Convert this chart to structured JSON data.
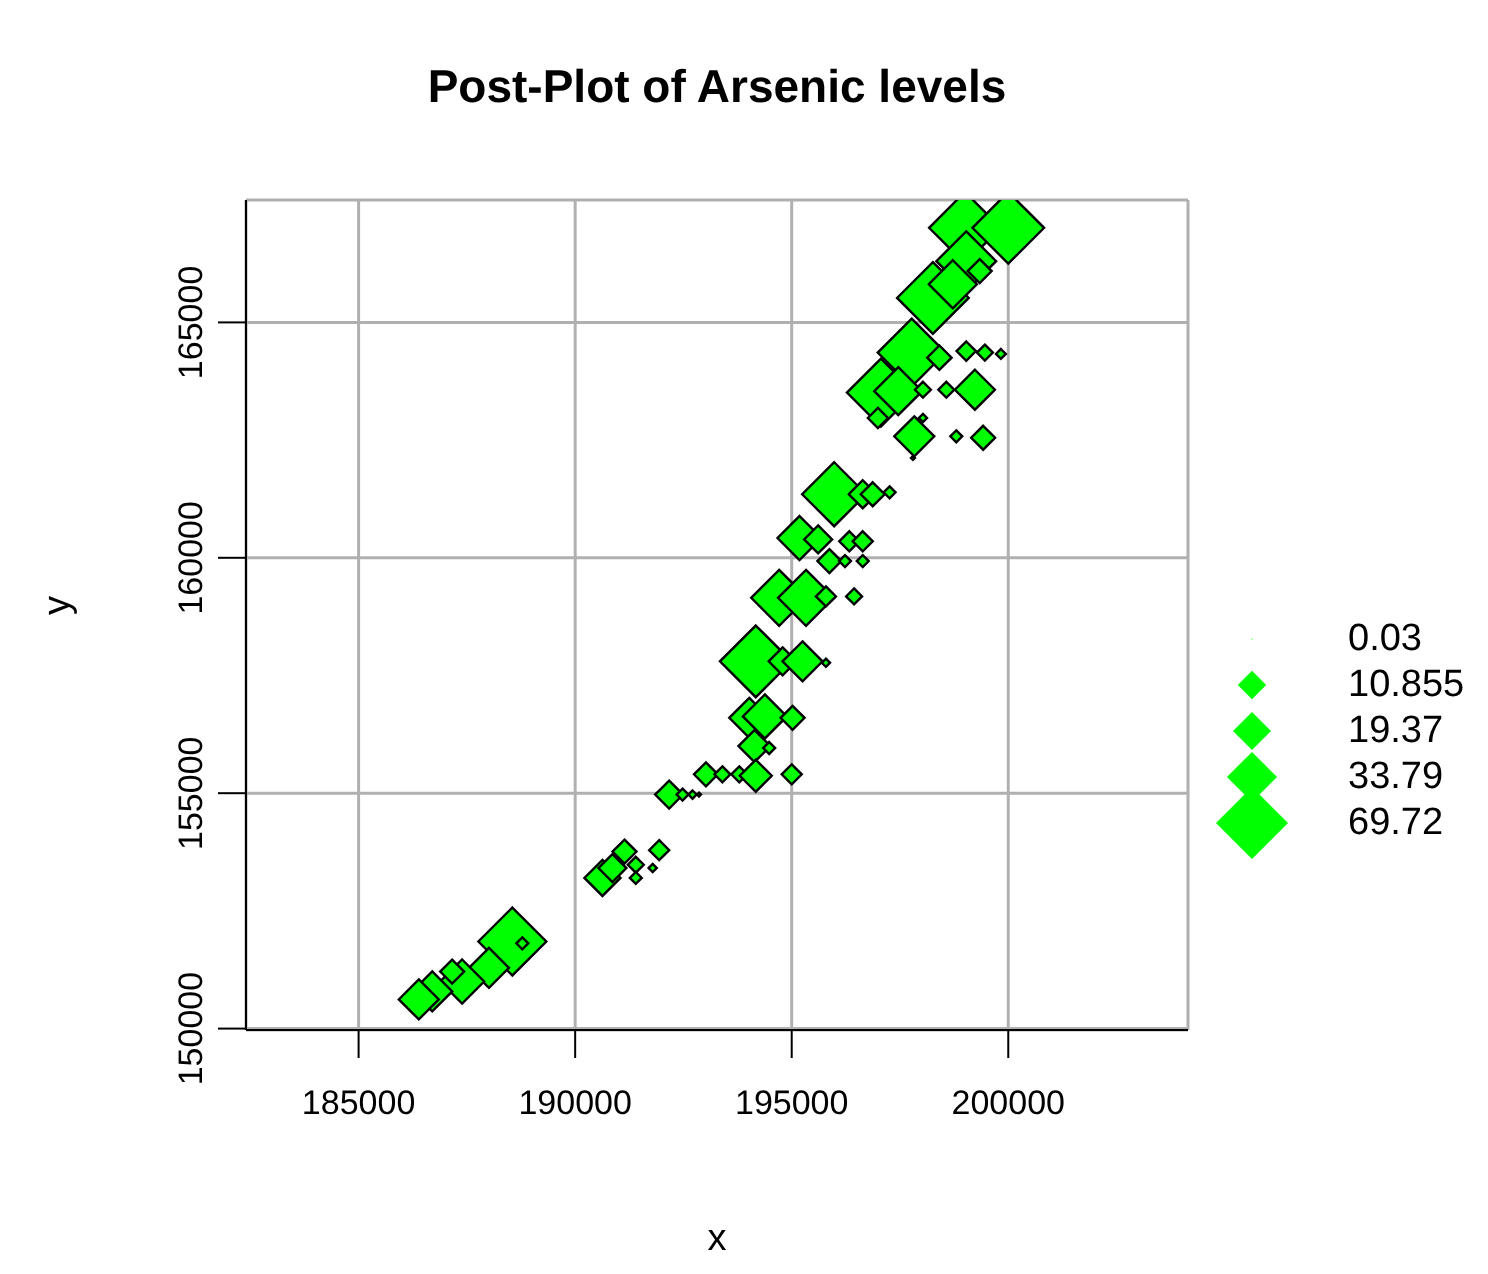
{
  "chart_data": {
    "type": "bubble",
    "title": "Post-Plot of Arsenic levels",
    "xlabel": "x",
    "ylabel": "y",
    "xlim": [
      182400,
      204150
    ],
    "ylim": [
      149970,
      167600
    ],
    "xticks": [
      185000,
      190000,
      195000,
      200000
    ],
    "yticks": [
      150000,
      155000,
      160000,
      165000
    ],
    "grid": true,
    "marker": "diamond",
    "size_legend": [
      0.03,
      10.855,
      19.37,
      33.79,
      69.72
    ],
    "series": [
      {
        "color": "#00ff00",
        "x": [
          199000,
          200000,
          199030,
          198260,
          198720,
          199340,
          197770,
          198410,
          199030,
          199460,
          199830,
          197060,
          197460,
          198030,
          198570,
          199230,
          196990,
          198030,
          197830,
          198800,
          199420,
          195980,
          196640,
          196870,
          197260,
          197800,
          195180,
          195610,
          196330,
          196640,
          195870,
          196230,
          196640,
          194710,
          195330,
          195790,
          196440,
          194170,
          194790,
          195250,
          195790,
          194020,
          194380,
          195020,
          194140,
          194480,
          193020,
          193400,
          193790,
          194170,
          195000,
          192170,
          192480,
          192710,
          192860,
          190630,
          190860,
          191140,
          191400,
          191400,
          191940,
          191790,
          188550,
          188010,
          187390,
          187160,
          186700,
          186390,
          188780
        ],
        "values": [
          167010,
          167010,
          166300,
          165520,
          165810,
          166090,
          164360,
          164250,
          164390,
          164360,
          164330,
          163510,
          163540,
          163570,
          163570,
          163570,
          162970,
          162970,
          162580,
          162580,
          162550,
          161350,
          161350,
          161350,
          161390,
          162120,
          160420,
          160390,
          160350,
          160350,
          159930,
          159930,
          159930,
          159150,
          159150,
          159180,
          159180,
          157800,
          157800,
          157800,
          157770,
          156600,
          156630,
          156600,
          156000,
          155960,
          155400,
          155400,
          155400,
          155370,
          155400,
          154970,
          154970,
          154970,
          154970,
          153200,
          153410,
          153760,
          153480,
          153200,
          153790,
          153410,
          151850,
          151290,
          151000,
          151210,
          150790,
          150620,
          151810
        ],
        "sizes": [
          69,
          69,
          48,
          69,
          31,
          7.7,
          62,
          8,
          5,
          3.4,
          1.3,
          62,
          31,
          3.4,
          3.4,
          21.5,
          5.4,
          0.9,
          21.5,
          1.9,
          7.7,
          55,
          10.5,
          7.7,
          1.9,
          0.2,
          26,
          10.5,
          5.4,
          5.4,
          7.7,
          1.9,
          1.9,
          42,
          42,
          5.4,
          3.4,
          69,
          10.5,
          21.5,
          0.9,
          21.5,
          26,
          7.7,
          13.8,
          1.9,
          7.7,
          3.4,
          3.4,
          13.8,
          5.4,
          10.5,
          1.9,
          0.9,
          0.2,
          17.5,
          10.5,
          7.7,
          3.4,
          1.9,
          5.4,
          0.9,
          62,
          21.5,
          26,
          7.7,
          21.5,
          21.5,
          1.9
        ]
      }
    ]
  }
}
